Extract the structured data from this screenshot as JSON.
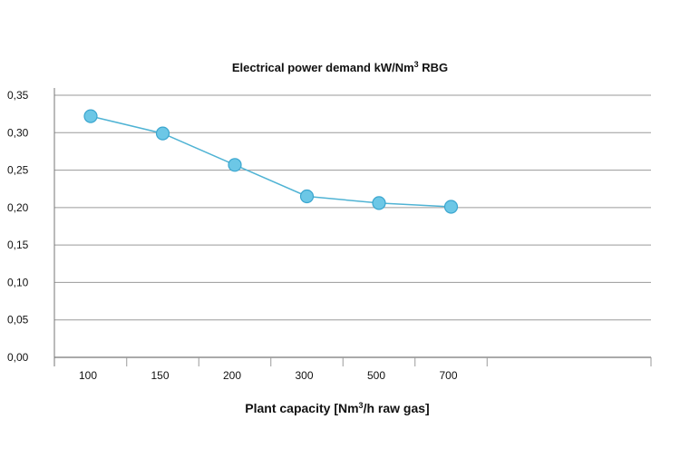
{
  "chart_data": {
    "type": "line",
    "title": "Electrical power demand kW/Nm",
    "title_sup": "3",
    "title_suffix": " RBG",
    "xlabel": "Plant capacity [Nm",
    "xlabel_sup": "3",
    "xlabel_suffix": "/h raw gas]",
    "ylabel": "",
    "categories": [
      "100",
      "150",
      "200",
      "300",
      "500",
      "700"
    ],
    "series": [
      {
        "values": [
          0.322,
          0.299,
          0.257,
          0.215,
          0.206,
          0.201
        ]
      }
    ],
    "y_ticks": [
      "0,00",
      "0,05",
      "0,10",
      "0,15",
      "0,20",
      "0,25",
      "0,30",
      "0,35"
    ],
    "ylim": [
      0,
      0.35
    ],
    "grid": true,
    "legend": "none",
    "colors": {
      "line": "#4fb3d4",
      "marker_fill": "#6cc7e6",
      "marker_stroke": "#3ba6cf",
      "grid": "#9a9a9a",
      "axis": "#777777"
    }
  }
}
